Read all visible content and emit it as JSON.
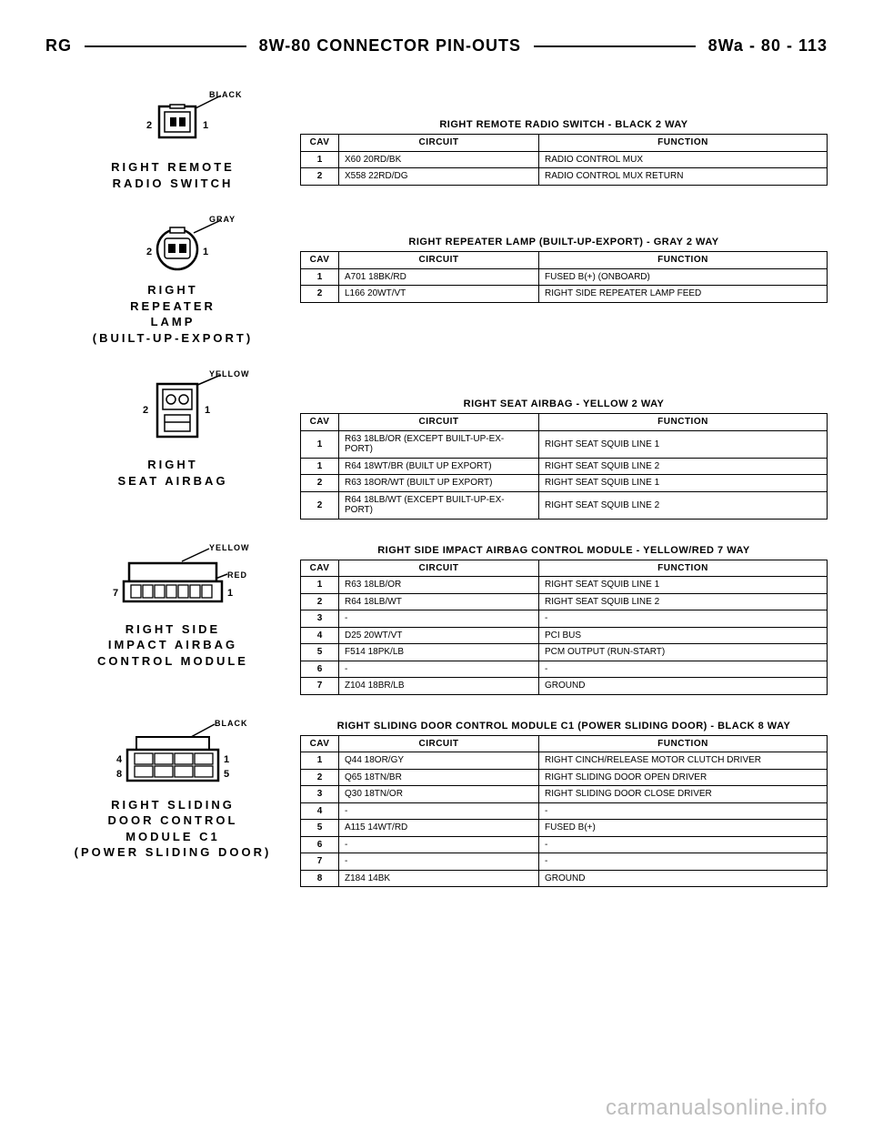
{
  "header": {
    "left": "RG",
    "center": "8W-80 CONNECTOR PIN-OUTS",
    "right": "8Wa - 80 - 113"
  },
  "colors": {
    "black": "BLACK",
    "gray": "GRAY",
    "yellow": "YELLOW",
    "red": "RED"
  },
  "sections": [
    {
      "conn": {
        "label": "RIGHT REMOTE\nRADIO SWITCH",
        "color_tag": "BLACK",
        "svg": "remote_radio"
      },
      "table": {
        "title": "RIGHT REMOTE RADIO SWITCH - BLACK 2 WAY",
        "cols": [
          "CAV",
          "CIRCUIT",
          "FUNCTION"
        ],
        "rows": [
          [
            "1",
            "X60 20RD/BK",
            "RADIO CONTROL MUX"
          ],
          [
            "2",
            "X558 22RD/DG",
            "RADIO CONTROL MUX RETURN"
          ]
        ]
      }
    },
    {
      "conn": {
        "label": "RIGHT\nREPEATER\nLAMP\n(BUILT-UP-EXPORT)",
        "color_tag": "GRAY",
        "svg": "repeater"
      },
      "table": {
        "title": "RIGHT REPEATER LAMP (BUILT-UP-EXPORT) - GRAY 2 WAY",
        "cols": [
          "CAV",
          "CIRCUIT",
          "FUNCTION"
        ],
        "rows": [
          [
            "1",
            "A701 18BK/RD",
            "FUSED B(+) (ONBOARD)"
          ],
          [
            "2",
            "L166 20WT/VT",
            "RIGHT SIDE REPEATER LAMP FEED"
          ]
        ]
      }
    },
    {
      "conn": {
        "label": "RIGHT\nSEAT AIRBAG",
        "color_tag": "YELLOW",
        "svg": "seat_airbag"
      },
      "table": {
        "title": "RIGHT SEAT AIRBAG - YELLOW 2 WAY",
        "cols": [
          "CAV",
          "CIRCUIT",
          "FUNCTION"
        ],
        "rows": [
          [
            "1",
            "R63 18LB/OR (EXCEPT BUILT-UP-EX-\nPORT)",
            "RIGHT SEAT SQUIB LINE 1"
          ],
          [
            "1",
            "R64 18WT/BR (BUILT UP EXPORT)",
            "RIGHT SEAT SQUIB LINE 2"
          ],
          [
            "2",
            "R63 18OR/WT (BUILT UP EXPORT)",
            "RIGHT SEAT SQUIB LINE 1"
          ],
          [
            "2",
            "R64 18LB/WT (EXCEPT BUILT-UP-EX-\nPORT)",
            "RIGHT SEAT SQUIB LINE 2"
          ]
        ]
      }
    },
    {
      "conn": {
        "label": "RIGHT SIDE\nIMPACT AIRBAG\nCONTROL MODULE",
        "color_tag": "YELLOW",
        "color_tag2": "RED",
        "svg": "siacm"
      },
      "table": {
        "title": "RIGHT SIDE IMPACT AIRBAG CONTROL MODULE - YELLOW/RED 7 WAY",
        "cols": [
          "CAV",
          "CIRCUIT",
          "FUNCTION"
        ],
        "rows": [
          [
            "1",
            "R63 18LB/OR",
            "RIGHT SEAT SQUIB LINE 1"
          ],
          [
            "2",
            "R64 18LB/WT",
            "RIGHT SEAT SQUIB LINE 2"
          ],
          [
            "3",
            "-",
            "-"
          ],
          [
            "4",
            "D25 20WT/VT",
            "PCI BUS"
          ],
          [
            "5",
            "F514 18PK/LB",
            "PCM OUTPUT (RUN-START)"
          ],
          [
            "6",
            "-",
            "-"
          ],
          [
            "7",
            "Z104 18BR/LB",
            "GROUND"
          ]
        ]
      }
    },
    {
      "conn": {
        "label": "RIGHT SLIDING\nDOOR CONTROL\nMODULE C1\n(POWER SLIDING DOOR)",
        "color_tag": "BLACK",
        "svg": "sdcm"
      },
      "table": {
        "title": "RIGHT SLIDING DOOR CONTROL MODULE C1 (POWER SLIDING DOOR) - BLACK 8 WAY",
        "cols": [
          "CAV",
          "CIRCUIT",
          "FUNCTION"
        ],
        "rows": [
          [
            "1",
            "Q44 18OR/GY",
            "RIGHT CINCH/RELEASE MOTOR CLUTCH DRIVER"
          ],
          [
            "2",
            "Q65 18TN/BR",
            "RIGHT SLIDING DOOR OPEN DRIVER"
          ],
          [
            "3",
            "Q30 18TN/OR",
            "RIGHT SLIDING DOOR CLOSE DRIVER"
          ],
          [
            "4",
            "-",
            "-"
          ],
          [
            "5",
            "A115 14WT/RD",
            "FUSED B(+)"
          ],
          [
            "6",
            "-",
            "-"
          ],
          [
            "7",
            "-",
            "-"
          ],
          [
            "8",
            "Z184 14BK",
            "GROUND"
          ]
        ]
      }
    }
  ],
  "watermark": "carmanualsonline.info"
}
